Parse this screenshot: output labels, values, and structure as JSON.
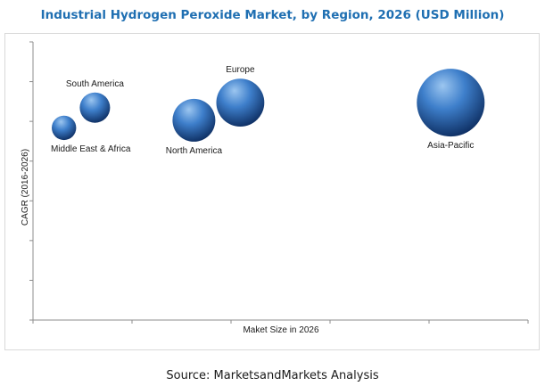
{
  "colors": {
    "title": "#1F6FB2",
    "bubble_light": "#9CC6F0",
    "bubble_mid": "#3E7FCB",
    "bubble_dark": "#0E2F63",
    "axis": "#8c8c8c"
  },
  "chart_data": {
    "type": "bubble",
    "title": "Industrial Hydrogen Peroxide Market, by Region, 2026 (USD Million)",
    "xlabel": "Maket Size in 2026",
    "ylabel": "CAGR (2016-2026)",
    "x_ticks_labeled": false,
    "y_ticks_labeled": false,
    "grid": false,
    "legend": "none",
    "series": [
      {
        "label": "Middle East & Africa",
        "x": 0.1,
        "y": 0.76,
        "size": 0.13,
        "label_position": "below"
      },
      {
        "label": "South America",
        "x": 0.2,
        "y": 0.84,
        "size": 0.2,
        "label_position": "above"
      },
      {
        "label": "North America",
        "x": 0.52,
        "y": 0.79,
        "size": 0.4,
        "label_position": "below"
      },
      {
        "label": "Europe",
        "x": 0.67,
        "y": 0.86,
        "size": 0.5,
        "label_position": "above"
      },
      {
        "label": "Asia-Pacific",
        "x": 1.35,
        "y": 0.86,
        "size": 1.0,
        "label_position": "below"
      }
    ],
    "xlim": [
      0,
      1.6
    ],
    "ylim": [
      0,
      1.1
    ]
  },
  "source": "Source: MarketsandMarkets Analysis"
}
